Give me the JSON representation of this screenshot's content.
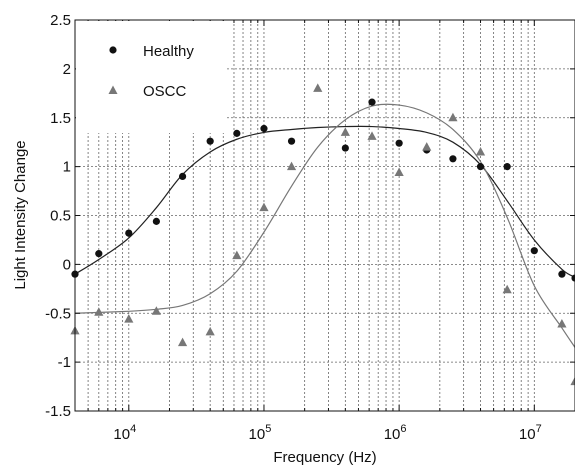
{
  "chart_data": {
    "type": "scatter",
    "xscale": "log",
    "xlim": [
      4000,
      20000000
    ],
    "ylim": [
      -1.5,
      2.5
    ],
    "grid": true,
    "xlabel": "Frequency (Hz)",
    "ylabel": "Light Intensity Change",
    "legend_position": "top-left",
    "x_ticks": [
      {
        "value": 10000,
        "base": "10",
        "exp": "4"
      },
      {
        "value": 100000,
        "base": "10",
        "exp": "5"
      },
      {
        "value": 1000000,
        "base": "10",
        "exp": "6"
      },
      {
        "value": 10000000,
        "base": "10",
        "exp": "7"
      }
    ],
    "y_ticks": [
      {
        "value": -1.5,
        "label": "-1.5"
      },
      {
        "value": -1,
        "label": "-1"
      },
      {
        "value": -0.5,
        "label": "-0.5"
      },
      {
        "value": 0,
        "label": "0"
      },
      {
        "value": 0.5,
        "label": "0.5"
      },
      {
        "value": 1,
        "label": "1"
      },
      {
        "value": 1.5,
        "label": "1.5"
      },
      {
        "value": 2,
        "label": "2"
      },
      {
        "value": 2.5,
        "label": "2.5"
      }
    ],
    "series": [
      {
        "name": "Healthy",
        "marker": "circle",
        "color": "#111111",
        "points": [
          [
            4000,
            -0.1
          ],
          [
            6000,
            0.11
          ],
          [
            10000,
            0.32
          ],
          [
            16000,
            0.44
          ],
          [
            25000,
            0.9
          ],
          [
            40000,
            1.26
          ],
          [
            63000,
            1.34
          ],
          [
            100000,
            1.39
          ],
          [
            160000,
            1.26
          ],
          [
            400000,
            1.19
          ],
          [
            630000,
            1.66
          ],
          [
            1000000,
            1.24
          ],
          [
            1600000,
            1.17
          ],
          [
            2500000,
            1.08
          ],
          [
            4000000,
            1.0
          ],
          [
            6300000,
            1.0
          ],
          [
            10000000,
            0.14
          ],
          [
            16000000,
            -0.1
          ],
          [
            20000000,
            -0.14
          ]
        ],
        "fit": [
          [
            4000,
            -0.1
          ],
          [
            6000,
            0.05
          ],
          [
            10000,
            0.27
          ],
          [
            16000,
            0.58
          ],
          [
            25000,
            0.92
          ],
          [
            40000,
            1.15
          ],
          [
            63000,
            1.28
          ],
          [
            100000,
            1.35
          ],
          [
            160000,
            1.38
          ],
          [
            250000,
            1.4
          ],
          [
            400000,
            1.41
          ],
          [
            630000,
            1.41
          ],
          [
            1000000,
            1.39
          ],
          [
            1600000,
            1.35
          ],
          [
            2500000,
            1.25
          ],
          [
            4000000,
            1.02
          ],
          [
            6300000,
            0.65
          ],
          [
            10000000,
            0.25
          ],
          [
            16000000,
            -0.05
          ],
          [
            20000000,
            -0.13
          ]
        ]
      },
      {
        "name": "OSCC",
        "marker": "triangle",
        "color": "#777777",
        "points": [
          [
            4000,
            -0.68
          ],
          [
            6000,
            -0.49
          ],
          [
            10000,
            -0.56
          ],
          [
            16000,
            -0.48
          ],
          [
            25000,
            -0.8
          ],
          [
            40000,
            -0.69
          ],
          [
            63000,
            0.09
          ],
          [
            100000,
            0.58
          ],
          [
            160000,
            1.0
          ],
          [
            250000,
            1.8
          ],
          [
            400000,
            1.35
          ],
          [
            630000,
            1.31
          ],
          [
            1000000,
            0.94
          ],
          [
            1600000,
            1.2
          ],
          [
            2500000,
            1.5
          ],
          [
            4000000,
            1.15
          ],
          [
            6300000,
            -0.26
          ],
          [
            16000000,
            -0.61
          ],
          [
            20000000,
            -1.2
          ]
        ],
        "fit": [
          [
            4000,
            -0.5
          ],
          [
            10000,
            -0.48
          ],
          [
            16000,
            -0.46
          ],
          [
            25000,
            -0.42
          ],
          [
            40000,
            -0.3
          ],
          [
            63000,
            -0.07
          ],
          [
            100000,
            0.33
          ],
          [
            160000,
            0.8
          ],
          [
            250000,
            1.2
          ],
          [
            400000,
            1.48
          ],
          [
            630000,
            1.62
          ],
          [
            1000000,
            1.63
          ],
          [
            1600000,
            1.55
          ],
          [
            2500000,
            1.38
          ],
          [
            4000000,
            1.05
          ],
          [
            6300000,
            0.48
          ],
          [
            10000000,
            -0.22
          ],
          [
            16000000,
            -0.65
          ],
          [
            20000000,
            -0.85
          ]
        ]
      }
    ]
  }
}
